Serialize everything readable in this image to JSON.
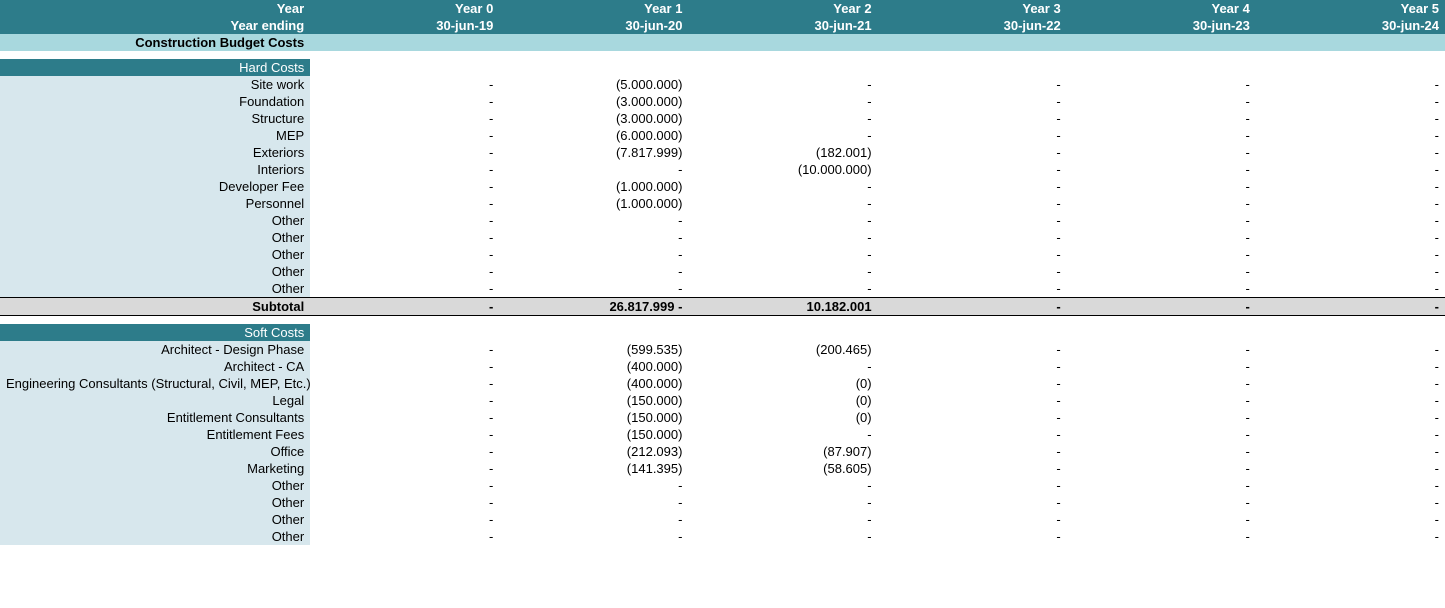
{
  "colors": {
    "header_bg": "#2d7c8a",
    "header_text": "#ffffff",
    "section_title_bg": "#a8d8de",
    "label_col_bg": "#d7e7ed",
    "subtotal_bg": "#d9d9d9",
    "body_bg": "#ffffff"
  },
  "typography": {
    "font_family": "Arial, sans-serif",
    "font_size_pt": 10
  },
  "header": {
    "year_label": "Year",
    "year_ending_label": "Year ending",
    "years": [
      "Year 0",
      "Year 1",
      "Year 2",
      "Year 3",
      "Year 4",
      "Year 5"
    ],
    "dates": [
      "30-jun-19",
      "30-jun-20",
      "30-jun-21",
      "30-jun-22",
      "30-jun-23",
      "30-jun-24"
    ]
  },
  "section_title": "Construction Budget Costs",
  "hard_costs": {
    "title": "Hard Costs",
    "rows": [
      {
        "label": "Site work",
        "vals": [
          "-",
          "(5.000.000)",
          "-",
          "-",
          "-",
          "-"
        ]
      },
      {
        "label": "Foundation",
        "vals": [
          "-",
          "(3.000.000)",
          "-",
          "-",
          "-",
          "-"
        ]
      },
      {
        "label": "Structure",
        "vals": [
          "-",
          "(3.000.000)",
          "-",
          "-",
          "-",
          "-"
        ]
      },
      {
        "label": "MEP",
        "vals": [
          "-",
          "(6.000.000)",
          "-",
          "-",
          "-",
          "-"
        ]
      },
      {
        "label": "Exteriors",
        "vals": [
          "-",
          "(7.817.999)",
          "(182.001)",
          "-",
          "-",
          "-"
        ]
      },
      {
        "label": "Interiors",
        "vals": [
          "-",
          "-",
          "(10.000.000)",
          "-",
          "-",
          "-"
        ]
      },
      {
        "label": "Developer Fee",
        "vals": [
          "-",
          "(1.000.000)",
          "-",
          "-",
          "-",
          "-"
        ]
      },
      {
        "label": "Personnel",
        "vals": [
          "-",
          "(1.000.000)",
          "-",
          "-",
          "-",
          "-"
        ]
      },
      {
        "label": "Other",
        "vals": [
          "-",
          "-",
          "-",
          "-",
          "-",
          "-"
        ]
      },
      {
        "label": "Other",
        "vals": [
          "-",
          "-",
          "-",
          "-",
          "-",
          "-"
        ]
      },
      {
        "label": "Other",
        "vals": [
          "-",
          "-",
          "-",
          "-",
          "-",
          "-"
        ]
      },
      {
        "label": "Other",
        "vals": [
          "-",
          "-",
          "-",
          "-",
          "-",
          "-"
        ]
      },
      {
        "label": "Other",
        "vals": [
          "-",
          "-",
          "-",
          "-",
          "-",
          "-"
        ]
      }
    ],
    "subtotal": {
      "label": "Subtotal",
      "vals": [
        "-",
        "26.817.999    -",
        "10.182.001",
        "-",
        "-",
        "-"
      ]
    }
  },
  "soft_costs": {
    "title": "Soft Costs",
    "rows": [
      {
        "label": "Architect - Design Phase",
        "vals": [
          "-",
          "(599.535)",
          "(200.465)",
          "-",
          "-",
          "-"
        ]
      },
      {
        "label": "Architect - CA",
        "vals": [
          "-",
          "(400.000)",
          "-",
          "-",
          "-",
          "-"
        ]
      },
      {
        "label": "Engineering Consultants (Structural, Civil, MEP, Etc.)",
        "vals": [
          "-",
          "(400.000)",
          "(0)",
          "-",
          "-",
          "-"
        ]
      },
      {
        "label": "Legal",
        "vals": [
          "-",
          "(150.000)",
          "(0)",
          "-",
          "-",
          "-"
        ]
      },
      {
        "label": "Entitlement Consultants",
        "vals": [
          "-",
          "(150.000)",
          "(0)",
          "-",
          "-",
          "-"
        ]
      },
      {
        "label": "Entitlement Fees",
        "vals": [
          "-",
          "(150.000)",
          "-",
          "-",
          "-",
          "-"
        ]
      },
      {
        "label": "Office",
        "vals": [
          "-",
          "(212.093)",
          "(87.907)",
          "-",
          "-",
          "-"
        ]
      },
      {
        "label": "Marketing",
        "vals": [
          "-",
          "(141.395)",
          "(58.605)",
          "-",
          "-",
          "-"
        ]
      },
      {
        "label": "Other",
        "vals": [
          "-",
          "-",
          "-",
          "-",
          "-",
          "-"
        ]
      },
      {
        "label": "Other",
        "vals": [
          "-",
          "-",
          "-",
          "-",
          "-",
          "-"
        ]
      },
      {
        "label": "Other",
        "vals": [
          "-",
          "-",
          "-",
          "-",
          "-",
          "-"
        ]
      },
      {
        "label": "Other",
        "vals": [
          "-",
          "-",
          "-",
          "-",
          "-",
          "-"
        ]
      }
    ]
  }
}
